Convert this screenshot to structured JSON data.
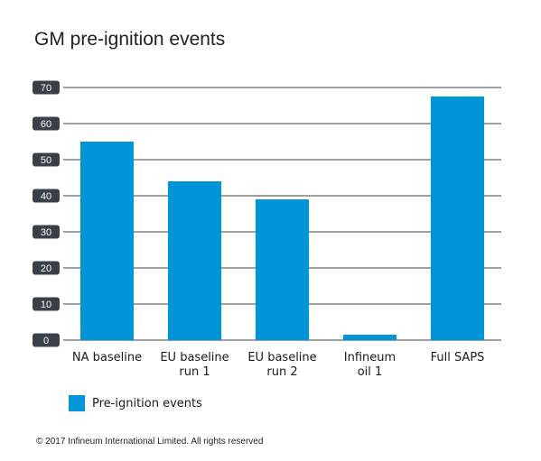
{
  "chart_data": {
    "type": "bar",
    "title": "GM pre-ignition events",
    "categories": [
      [
        "NA baseline"
      ],
      [
        "EU baseline",
        "run 1"
      ],
      [
        "EU baseline",
        "run 2"
      ],
      [
        "Infineum",
        "oil 1"
      ],
      [
        "Full SAPS"
      ]
    ],
    "series": [
      {
        "name": "Pre-ignition events",
        "values": [
          55,
          44,
          39,
          1.5,
          67.5
        ]
      }
    ],
    "ylim": [
      0,
      70
    ],
    "yticks": [
      "0",
      "10",
      "20",
      "30",
      "40",
      "50",
      "60",
      "70"
    ],
    "grid": true,
    "legend_position": "bottom-left",
    "bar_color": "#0095d9",
    "tick_badge_color": "#3a3f4a",
    "grid_color": "#3a3f4a"
  },
  "footer": {
    "copyright": "© 2017 Infineum International Limited. All rights reserved"
  }
}
